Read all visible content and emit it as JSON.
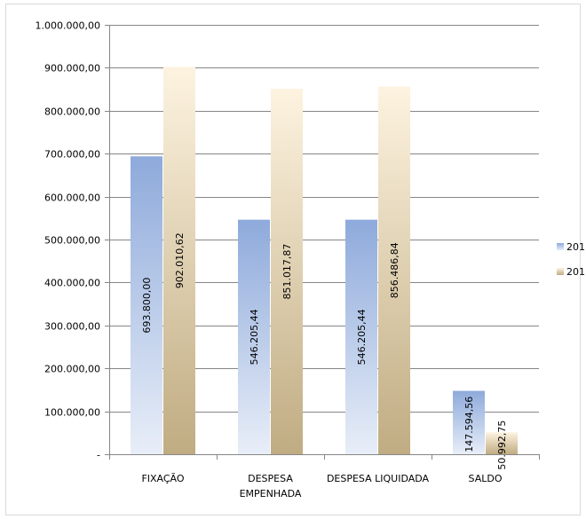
{
  "chart_data": {
    "type": "bar",
    "title": "",
    "xlabel": "",
    "ylabel": "",
    "categories": [
      [
        "FIXAÇÃO"
      ],
      [
        "DESPESA",
        "EMPENHADA"
      ],
      [
        "DESPESA LIQUIDADA"
      ],
      [
        "SALDO"
      ]
    ],
    "series": [
      {
        "name": "201",
        "values": [
          693800.0,
          546205.44,
          546205.44,
          147594.56
        ],
        "labels": [
          "693.800,00",
          "546.205,44",
          "546.205,44",
          "147.594,56"
        ],
        "color_top": "#8eaadb",
        "color_bottom": "#e8eef8"
      },
      {
        "name": "201",
        "values": [
          902010.62,
          851017.87,
          856486.84,
          50992.75
        ],
        "labels": [
          "902.010,62",
          "851.017,87",
          "856.486,84",
          "50.992,75"
        ],
        "color_top": "#fdf3e0",
        "color_bottom": "#c0ac82"
      }
    ],
    "ylim": [
      0,
      1000000
    ],
    "yticks": [
      {
        "value": 0,
        "label": "-"
      },
      {
        "value": 100000,
        "label": "100.000,00"
      },
      {
        "value": 200000,
        "label": "200.000,00"
      },
      {
        "value": 300000,
        "label": "300.000,00"
      },
      {
        "value": 400000,
        "label": "400.000,00"
      },
      {
        "value": 500000,
        "label": "500.000,00"
      },
      {
        "value": 600000,
        "label": "600.000,00"
      },
      {
        "value": 700000,
        "label": "700.000,00"
      },
      {
        "value": 800000,
        "label": "800.000,00"
      },
      {
        "value": 900000,
        "label": "900.000,00"
      },
      {
        "value": 1000000,
        "label": "1.000.000,00"
      }
    ],
    "grid": true,
    "legend_position": "right"
  }
}
